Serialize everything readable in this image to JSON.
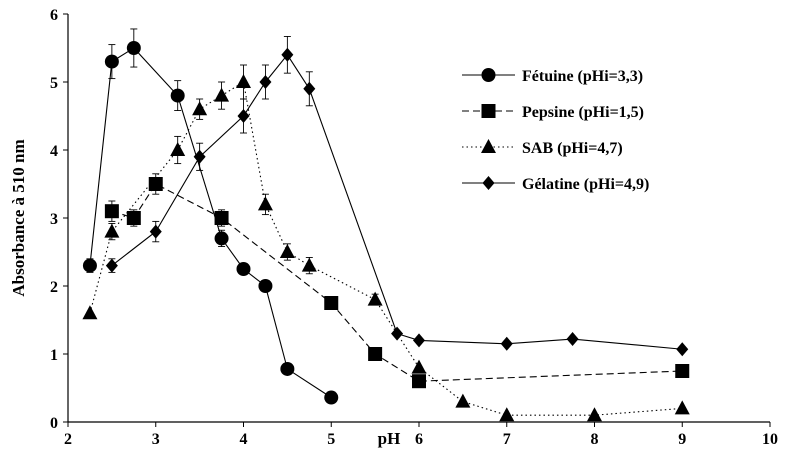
{
  "chart_data": {
    "type": "line",
    "title": "",
    "xlabel": "pH",
    "ylabel": "Absorbance à 510 nm",
    "xlim": [
      2,
      10
    ],
    "ylim": [
      0,
      6
    ],
    "xticks": [
      "2",
      "3",
      "4",
      "5",
      "6",
      "7",
      "8",
      "9",
      "10"
    ],
    "yticks": [
      "0",
      "1",
      "2",
      "3",
      "4",
      "5",
      "6"
    ],
    "grid": false,
    "legend_position": "right",
    "series": [
      {
        "name": "Fétuine (pHi=3,3)",
        "marker": "circle",
        "line": "solid",
        "color": "#000000",
        "points": [
          {
            "x": 2.25,
            "y": 2.3,
            "err": 0.1
          },
          {
            "x": 2.5,
            "y": 5.3,
            "err": 0.25
          },
          {
            "x": 2.75,
            "y": 5.5,
            "err": 0.28
          },
          {
            "x": 3.25,
            "y": 4.8,
            "err": 0.22
          },
          {
            "x": 3.75,
            "y": 2.7,
            "err": 0.12
          },
          {
            "x": 4.0,
            "y": 2.25,
            "err": 0
          },
          {
            "x": 4.25,
            "y": 2.0,
            "err": 0
          },
          {
            "x": 4.5,
            "y": 0.78,
            "err": 0
          },
          {
            "x": 5.0,
            "y": 0.36,
            "err": 0
          }
        ]
      },
      {
        "name": "Pepsine (pHi=1,5)",
        "marker": "square",
        "line": "dashed",
        "color": "#000000",
        "points": [
          {
            "x": 2.5,
            "y": 3.1,
            "err": 0.15
          },
          {
            "x": 2.75,
            "y": 3.0,
            "err": 0.12
          },
          {
            "x": 3.0,
            "y": 3.5,
            "err": 0.15
          },
          {
            "x": 3.75,
            "y": 3.0,
            "err": 0.12
          },
          {
            "x": 5.0,
            "y": 1.75,
            "err": 0
          },
          {
            "x": 5.5,
            "y": 1.0,
            "err": 0
          },
          {
            "x": 6.0,
            "y": 0.6,
            "err": 0
          },
          {
            "x": 9.0,
            "y": 0.75,
            "err": 0
          }
        ]
      },
      {
        "name": "SAB (pHi=4,7)",
        "marker": "triangle",
        "line": "dotted",
        "color": "#000000",
        "points": [
          {
            "x": 2.25,
            "y": 1.6,
            "err": 0
          },
          {
            "x": 2.5,
            "y": 2.8,
            "err": 0.12
          },
          {
            "x": 3.25,
            "y": 4.0,
            "err": 0.2
          },
          {
            "x": 3.5,
            "y": 4.6,
            "err": 0.15
          },
          {
            "x": 3.75,
            "y": 4.8,
            "err": 0.2
          },
          {
            "x": 4.0,
            "y": 5.0,
            "err": 0.25
          },
          {
            "x": 4.25,
            "y": 3.2,
            "err": 0.15
          },
          {
            "x": 4.5,
            "y": 2.5,
            "err": 0.12
          },
          {
            "x": 4.75,
            "y": 2.3,
            "err": 0.12
          },
          {
            "x": 5.5,
            "y": 1.8,
            "err": 0.08
          },
          {
            "x": 6.0,
            "y": 0.8,
            "err": 0
          },
          {
            "x": 6.5,
            "y": 0.3,
            "err": 0
          },
          {
            "x": 7.0,
            "y": 0.1,
            "err": 0
          },
          {
            "x": 8.0,
            "y": 0.1,
            "err": 0
          },
          {
            "x": 9.0,
            "y": 0.2,
            "err": 0
          }
        ]
      },
      {
        "name": "Gélatine (pHi=4,9)",
        "marker": "diamond",
        "line": "solid",
        "color": "#000000",
        "points": [
          {
            "x": 2.5,
            "y": 2.3,
            "err": 0.1
          },
          {
            "x": 3.0,
            "y": 2.8,
            "err": 0.15
          },
          {
            "x": 3.5,
            "y": 3.9,
            "err": 0.2
          },
          {
            "x": 4.0,
            "y": 4.5,
            "err": 0.25
          },
          {
            "x": 4.25,
            "y": 5.0,
            "err": 0.25
          },
          {
            "x": 4.5,
            "y": 5.4,
            "err": 0.27
          },
          {
            "x": 4.75,
            "y": 4.9,
            "err": 0.25
          },
          {
            "x": 5.75,
            "y": 1.3,
            "err": 0
          },
          {
            "x": 6.0,
            "y": 1.2,
            "err": 0
          },
          {
            "x": 7.0,
            "y": 1.15,
            "err": 0
          },
          {
            "x": 7.75,
            "y": 1.22,
            "err": 0
          },
          {
            "x": 9.0,
            "y": 1.07,
            "err": 0
          }
        ]
      }
    ]
  }
}
